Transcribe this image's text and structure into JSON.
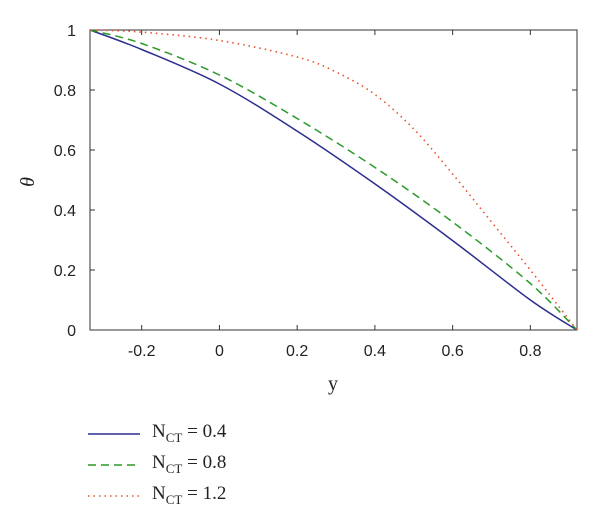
{
  "chart_data": {
    "type": "line",
    "xlabel": "y",
    "ylabel": "θ",
    "xlim": [
      -0.333,
      0.92
    ],
    "ylim": [
      0,
      1
    ],
    "x_ticks": [
      -0.2,
      0,
      0.2,
      0.4,
      0.6,
      0.8
    ],
    "x_tick_labels": [
      "-0.2",
      "0",
      "0.2",
      "0.4",
      "0.6",
      "0.8"
    ],
    "y_ticks": [
      0,
      0.2,
      0.4,
      0.6,
      0.8,
      1
    ],
    "y_tick_labels": [
      "0",
      "0.2",
      "0.4",
      "0.6",
      "0.8",
      "1"
    ],
    "grid": false,
    "legend_position": "below",
    "series": [
      {
        "name": "N_CT = 0.4",
        "legend_base": "N",
        "legend_sub": "CT",
        "legend_tail": " = 0.4",
        "color": "#2b2d8f",
        "dash": "solid",
        "x": [
          -0.333,
          -0.2,
          0,
          0.2,
          0.4,
          0.6,
          0.8,
          0.92
        ],
        "y": [
          1,
          0.935,
          0.82,
          0.663,
          0.487,
          0.298,
          0.1,
          0
        ]
      },
      {
        "name": "N_CT = 0.8",
        "legend_base": "N",
        "legend_sub": "CT",
        "legend_tail": " = 0.8",
        "color": "#2a9a2a",
        "dash": "dashed",
        "x": [
          -0.333,
          -0.2,
          0,
          0.2,
          0.4,
          0.6,
          0.8,
          0.92
        ],
        "y": [
          1,
          0.955,
          0.85,
          0.705,
          0.542,
          0.36,
          0.155,
          0
        ]
      },
      {
        "name": "N_CT = 1.2",
        "legend_base": "N",
        "legend_sub": "CT",
        "legend_tail": " = 1.2",
        "color": "#e8502a",
        "dash": "dotted",
        "x": [
          -0.333,
          -0.2,
          0,
          0.2,
          0.3,
          0.4,
          0.5,
          0.6,
          0.7,
          0.8,
          0.92
        ],
        "y": [
          1,
          0.993,
          0.965,
          0.91,
          0.86,
          0.785,
          0.67,
          0.52,
          0.36,
          0.2,
          0
        ]
      }
    ]
  }
}
